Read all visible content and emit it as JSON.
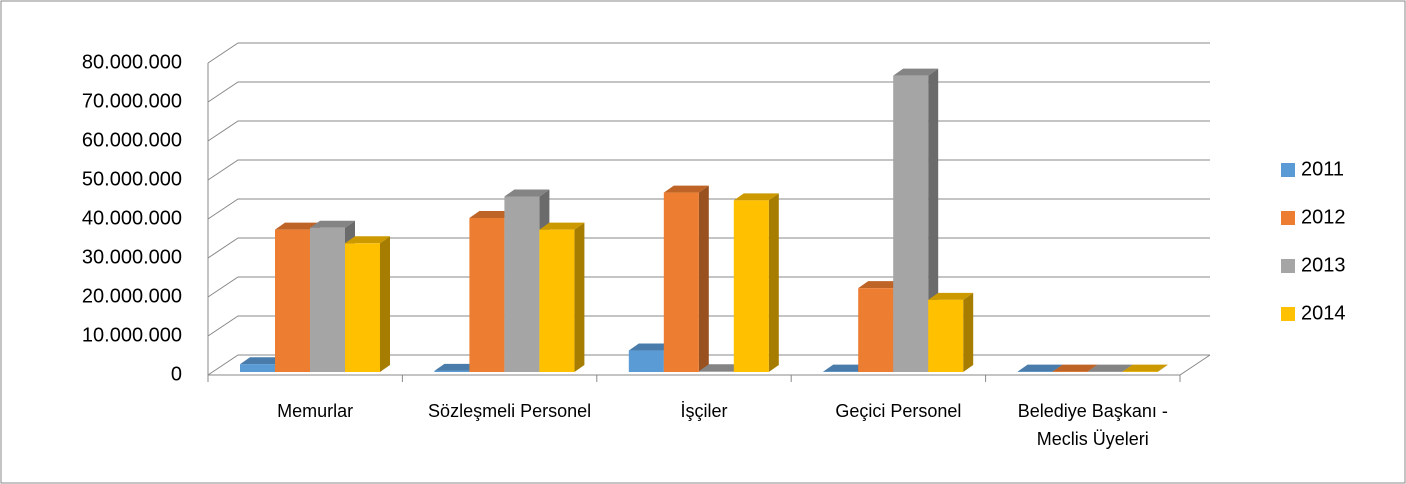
{
  "chart_data": {
    "type": "bar3d",
    "categories": [
      "Memurlar",
      "Sözleşmeli Personel",
      "İşçiler",
      "Geçici Personel",
      "Belediye Başkanı - Meclis Üyeleri"
    ],
    "series": [
      {
        "name": "2011",
        "color": "#5b9bd5",
        "values": [
          2000000,
          300000,
          5500000,
          100000,
          100000
        ]
      },
      {
        "name": "2012",
        "color": "#ed7d31",
        "values": [
          36500000,
          39500000,
          46000000,
          21500000,
          100000
        ]
      },
      {
        "name": "2013",
        "color": "#a5a5a5",
        "values": [
          37000000,
          45000000,
          200000,
          76000000,
          100000
        ]
      },
      {
        "name": "2014",
        "color": "#ffc000",
        "values": [
          33000000,
          36500000,
          44000000,
          18500000,
          100000
        ]
      }
    ],
    "ylim": [
      0,
      80000000
    ],
    "yticks": [
      0,
      {
        "value": 10000000,
        "label": "10.000.000"
      },
      {
        "value": 20000000,
        "label": "20.000.000"
      },
      {
        "value": 30000000,
        "label": "30.000.000"
      },
      {
        "value": 40000000,
        "label": "40.000.000"
      },
      {
        "value": 50000000,
        "label": "50.000.000"
      },
      {
        "value": 60000000,
        "label": "60.000.000"
      },
      {
        "value": 70000000,
        "label": "70.000.000"
      },
      {
        "value": 80000000,
        "label": "80.000.000"
      }
    ],
    "grid": true,
    "legend": "right"
  }
}
